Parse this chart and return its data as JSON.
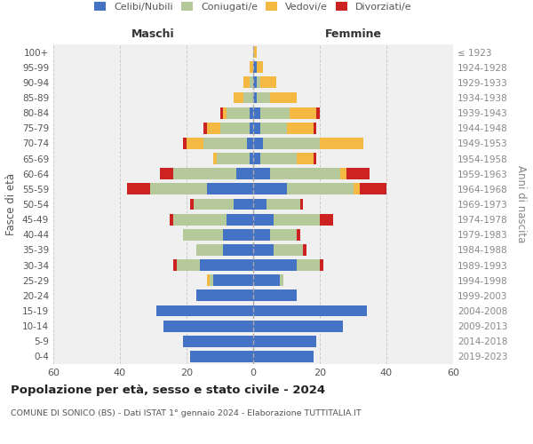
{
  "age_groups": [
    "0-4",
    "5-9",
    "10-14",
    "15-19",
    "20-24",
    "25-29",
    "30-34",
    "35-39",
    "40-44",
    "45-49",
    "50-54",
    "55-59",
    "60-64",
    "65-69",
    "70-74",
    "75-79",
    "80-84",
    "85-89",
    "90-94",
    "95-99",
    "100+"
  ],
  "birth_years": [
    "2019-2023",
    "2014-2018",
    "2009-2013",
    "2004-2008",
    "1999-2003",
    "1994-1998",
    "1989-1993",
    "1984-1988",
    "1979-1983",
    "1974-1978",
    "1969-1973",
    "1964-1968",
    "1959-1963",
    "1954-1958",
    "1949-1953",
    "1944-1948",
    "1939-1943",
    "1934-1938",
    "1929-1933",
    "1924-1928",
    "≤ 1923"
  ],
  "maschi": {
    "celibi": [
      19,
      21,
      27,
      29,
      17,
      12,
      16,
      9,
      9,
      8,
      6,
      14,
      5,
      1,
      2,
      1,
      1,
      0,
      0,
      0,
      0
    ],
    "coniugati": [
      0,
      0,
      0,
      0,
      0,
      1,
      7,
      8,
      12,
      16,
      12,
      17,
      19,
      10,
      13,
      9,
      7,
      3,
      1,
      0,
      0
    ],
    "vedovi": [
      0,
      0,
      0,
      0,
      0,
      1,
      0,
      0,
      0,
      0,
      0,
      0,
      0,
      1,
      5,
      4,
      1,
      3,
      2,
      1,
      0
    ],
    "divorziati": [
      0,
      0,
      0,
      0,
      0,
      0,
      1,
      0,
      0,
      1,
      1,
      7,
      4,
      0,
      1,
      1,
      1,
      0,
      0,
      0,
      0
    ]
  },
  "femmine": {
    "nubili": [
      18,
      19,
      27,
      34,
      13,
      8,
      13,
      6,
      5,
      6,
      4,
      10,
      5,
      2,
      3,
      2,
      2,
      1,
      1,
      1,
      0
    ],
    "coniugate": [
      0,
      0,
      0,
      0,
      0,
      1,
      7,
      9,
      8,
      14,
      10,
      20,
      21,
      11,
      17,
      8,
      9,
      4,
      1,
      0,
      0
    ],
    "vedove": [
      0,
      0,
      0,
      0,
      0,
      0,
      0,
      0,
      0,
      0,
      0,
      2,
      2,
      5,
      13,
      8,
      8,
      8,
      5,
      2,
      1
    ],
    "divorziate": [
      0,
      0,
      0,
      0,
      0,
      0,
      1,
      1,
      1,
      4,
      1,
      8,
      7,
      1,
      0,
      1,
      1,
      0,
      0,
      0,
      0
    ]
  },
  "colors": {
    "celibi": "#4472c4",
    "coniugati": "#b5c99a",
    "vedovi": "#f4b942",
    "divorziati": "#cc2222"
  },
  "xlim": 60,
  "title": "Popolazione per età, sesso e stato civile - 2024",
  "subtitle": "COMUNE DI SONICO (BS) - Dati ISTAT 1° gennaio 2024 - Elaborazione TUTTITALIA.IT",
  "ylabel": "Fasce di età",
  "ylabel_right": "Anni di nascita",
  "xlabel_left": "Maschi",
  "xlabel_right": "Femmine",
  "bg_color": "#f0f0f0",
  "grid_color": "#cccccc"
}
